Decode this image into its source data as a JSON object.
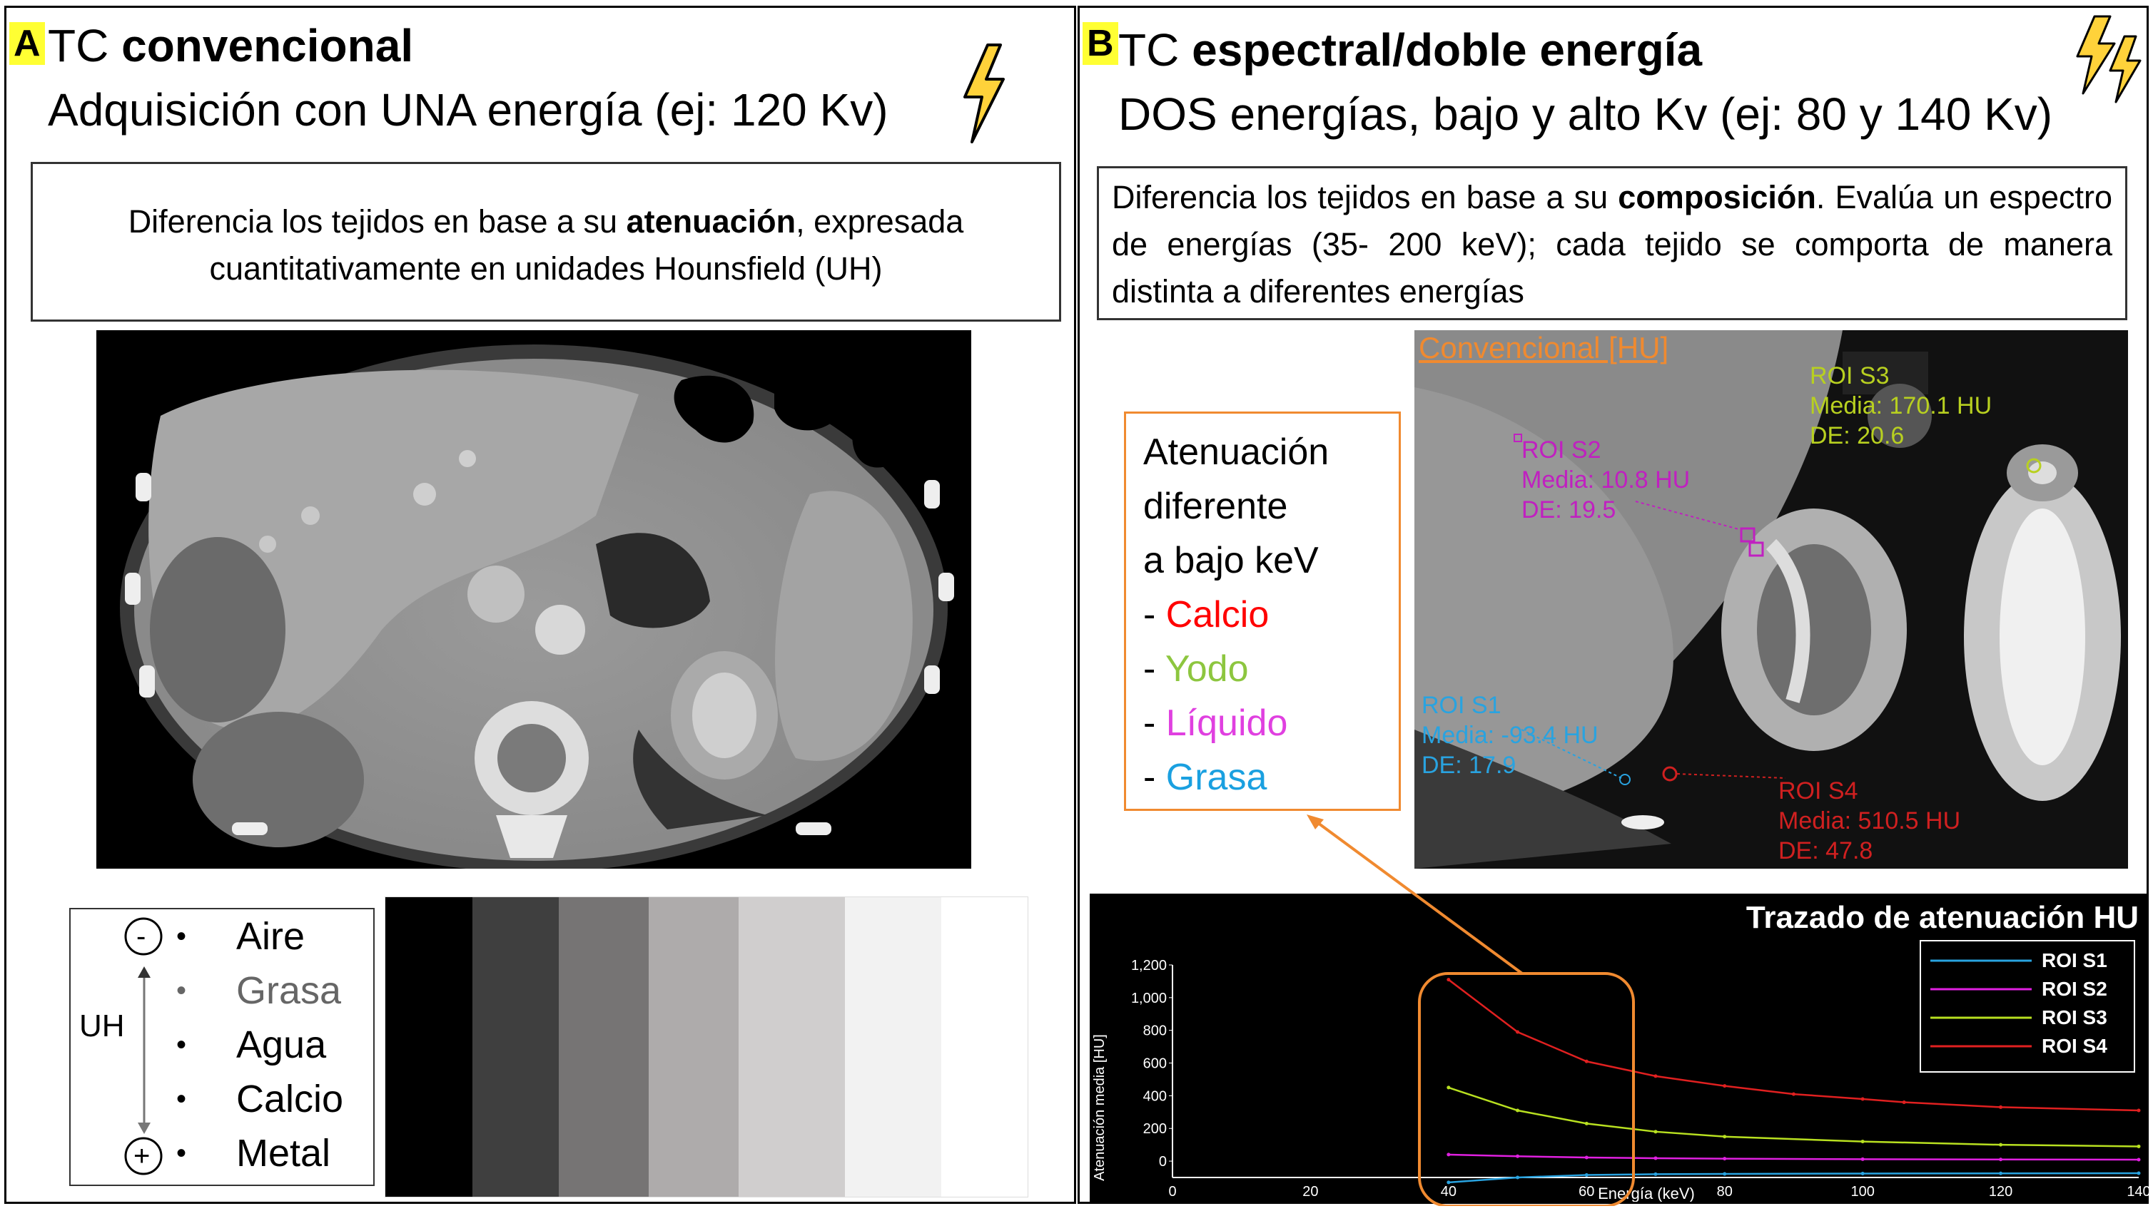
{
  "panel_a": {
    "letter": "A",
    "title_prefix": "TC ",
    "title_bold": "convencional",
    "subtitle": "Adquisición con UNA energía (ej: 120 Kv)",
    "desc_pre": "Diferencia los tejidos en base a su ",
    "desc_bold": "atenuación",
    "desc_post": ", expresada cuantitativamente en unidades Hounsfield (UH)",
    "legend": {
      "axis_label": "UH",
      "minus_sign": "-",
      "plus_sign": "+",
      "items": [
        "Aire",
        "Grasa",
        "Agua",
        "Calcio",
        "Metal"
      ]
    },
    "gray_scale": [
      "#000000",
      "#3f3f3f",
      "#767474",
      "#aeabab",
      "#d0cece",
      "#f2f2f2",
      "#ffffff"
    ]
  },
  "panel_b": {
    "letter": "B",
    "title_prefix": "TC ",
    "title_bold": "espectral/doble energía",
    "subtitle": "DOS energías, bajo y alto Kv (ej: 80 y 140 Kv)",
    "desc_pre": "Diferencia los tejidos en base a su ",
    "desc_bold": "composición",
    "desc_post": ". Evalúa un espectro de energías (35- 200 keV); cada tejido se comporta de manera distinta a diferentes energías",
    "ct_title": "Convencional [HU]",
    "rois": [
      {
        "name": "ROI S1",
        "media": "Media: -93.4 HU",
        "de": "DE: 17.9",
        "color": "#29a3e0"
      },
      {
        "name": "ROI S2",
        "media": "Media: 10.8 HU",
        "de": "DE: 19.5",
        "color": "#c020c0"
      },
      {
        "name": "ROI S3",
        "media": "Media: 170.1 HU",
        "de": "DE: 20.6",
        "color": "#b8d020"
      },
      {
        "name": "ROI S4",
        "media": "Media: 510.5 HU",
        "de": "DE: 47.8",
        "color": "#d02020"
      }
    ],
    "attenuation_box": {
      "lines": [
        "Atenuación",
        "diferente",
        "a bajo keV"
      ],
      "items": [
        {
          "label": "Calcio",
          "color": "#ff0000"
        },
        {
          "label": "Yodo",
          "color": "#8dc63f"
        },
        {
          "label": "Líquido",
          "color": "#e040e0"
        },
        {
          "label": "Grasa",
          "color": "#1aa0e0"
        }
      ],
      "dash": "- "
    }
  },
  "chart_data": {
    "type": "line",
    "title": "Trazado de atenuación HU",
    "xlabel": "Energía (keV)",
    "ylabel": "Atenuación media [HU]",
    "xlim": [
      0,
      140
    ],
    "ylim": [
      -100,
      1200
    ],
    "x_ticks": [
      "0",
      "20",
      "40",
      "60",
      "80",
      "100",
      "120",
      "140"
    ],
    "y_ticks": [
      "0",
      "200",
      "400",
      "600",
      "800",
      "1,000",
      "1,200"
    ],
    "legend_position": "top-right",
    "series": [
      {
        "name": "ROI S1",
        "color": "#29a3e0",
        "x": [
          40,
          50,
          60,
          70,
          80,
          100,
          120,
          140
        ],
        "y": [
          -130,
          -100,
          -85,
          -80,
          -78,
          -76,
          -75,
          -74
        ]
      },
      {
        "name": "ROI S2",
        "color": "#e020e0",
        "x": [
          40,
          50,
          60,
          70,
          80,
          100,
          120,
          140
        ],
        "y": [
          40,
          30,
          22,
          18,
          15,
          12,
          10,
          9
        ]
      },
      {
        "name": "ROI S3",
        "color": "#b8e020",
        "x": [
          40,
          50,
          60,
          70,
          80,
          100,
          120,
          140
        ],
        "y": [
          450,
          310,
          230,
          180,
          150,
          120,
          100,
          90
        ]
      },
      {
        "name": "ROI S4",
        "color": "#e02020",
        "x": [
          40,
          50,
          60,
          70,
          80,
          90,
          100,
          106,
          120,
          140
        ],
        "y": [
          1110,
          790,
          610,
          520,
          460,
          410,
          380,
          360,
          330,
          310
        ]
      }
    ]
  }
}
